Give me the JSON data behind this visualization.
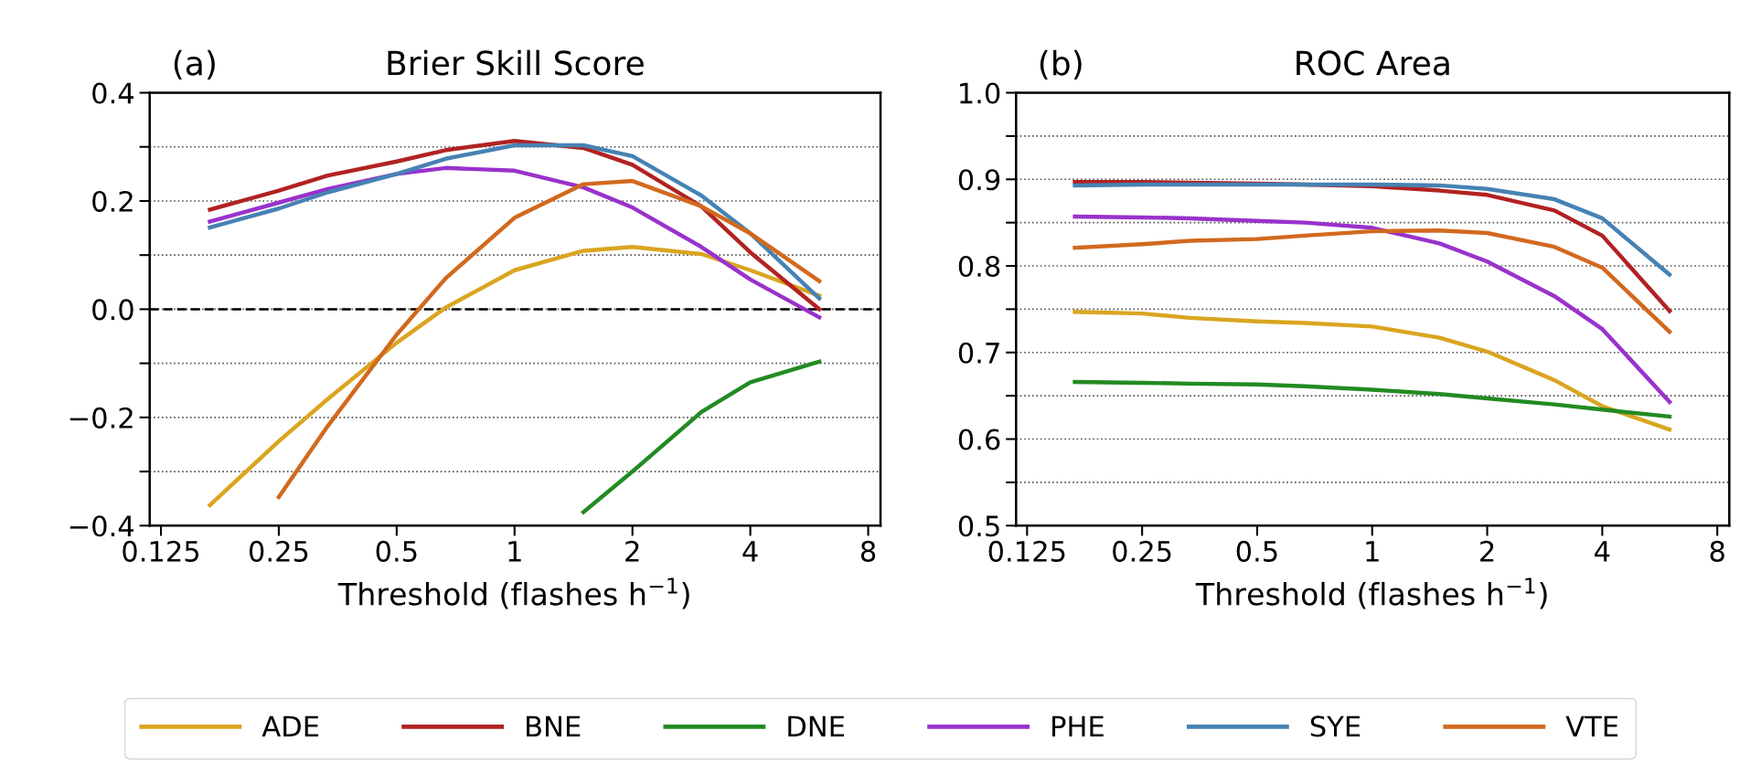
{
  "chart_data": [
    {
      "type": "line",
      "title": "Brier Skill Score",
      "annotations": [
        "(a)"
      ],
      "xlabel": "Threshold (flashes h$^{−1}$)",
      "log": "x",
      "x": [
        0.1667,
        0.25,
        0.3333,
        0.5,
        0.6667,
        1,
        1.5,
        2,
        3,
        4,
        6
      ],
      "xlim": [
        0.117,
        8.6
      ],
      "xticks": [
        0.125,
        0.25,
        0.5,
        1,
        2,
        4,
        8
      ],
      "ylim": [
        -0.4,
        0.4
      ],
      "yticks": [
        {
          "value": -0.4,
          "label": "−0.4"
        },
        {
          "value": -0.3,
          "label": null
        },
        {
          "value": -0.2,
          "label": "−0.2"
        },
        {
          "value": -0.1,
          "label": null
        },
        {
          "value": 0,
          "label": "0.0"
        },
        {
          "value": 0.1,
          "label": null
        },
        {
          "value": 0.2,
          "label": "0.2"
        },
        {
          "value": 0.3,
          "label": null
        },
        {
          "value": 0.4,
          "label": "0.4"
        }
      ],
      "grid": "y",
      "legend": "bottom",
      "line_style": "solid",
      "marker": "none",
      "ref_lines": [
        {
          "axis": "y",
          "value": 0,
          "color": "#000000",
          "line_style": "dashed"
        }
      ],
      "series": [
        {
          "name": "ADE",
          "color": "#daa520",
          "values": [
            -0.362,
            -0.244,
            -0.166,
            -0.062,
            0.003,
            0.072,
            0.108,
            0.115,
            0.102,
            0.072,
            0.025
          ]
        },
        {
          "name": "BNE",
          "color": "#b22222",
          "values": [
            0.184,
            0.219,
            0.247,
            0.273,
            0.294,
            0.311,
            0.298,
            0.267,
            0.19,
            0.105,
            0.0
          ]
        },
        {
          "name": "DNE",
          "color": "#228b22",
          "values": [
            null,
            null,
            null,
            null,
            null,
            null,
            -0.375,
            -0.3,
            -0.19,
            -0.135,
            -0.097
          ]
        },
        {
          "name": "PHE",
          "color": "#9932cc",
          "values": [
            0.162,
            0.197,
            0.222,
            0.25,
            0.261,
            0.256,
            0.225,
            0.188,
            0.115,
            0.055,
            -0.015
          ]
        },
        {
          "name": "SYE",
          "color": "#4682b4",
          "values": [
            0.151,
            0.186,
            0.216,
            0.25,
            0.278,
            0.303,
            0.303,
            0.283,
            0.21,
            0.14,
            0.02
          ]
        },
        {
          "name": "VTE",
          "color": "#d2691e",
          "values": [
            null,
            -0.347,
            -0.216,
            -0.047,
            0.057,
            0.169,
            0.231,
            0.237,
            0.19,
            0.14,
            0.052
          ]
        }
      ]
    },
    {
      "type": "line",
      "title": "ROC Area",
      "annotations": [
        "(b)"
      ],
      "xlabel": "Threshold (flashes h$^{−1}$)",
      "log": "x",
      "x": [
        0.1667,
        0.25,
        0.3333,
        0.5,
        0.6667,
        1,
        1.5,
        2,
        3,
        4,
        6
      ],
      "xlim": [
        0.117,
        8.6
      ],
      "xticks": [
        0.125,
        0.25,
        0.5,
        1,
        2,
        4,
        8
      ],
      "ylim": [
        0.5,
        1.0
      ],
      "yticks": [
        0.5,
        {
          "value": 0.55,
          "label": null
        },
        0.6,
        {
          "value": 0.65,
          "label": null
        },
        0.7,
        {
          "value": 0.75,
          "label": null
        },
        0.8,
        {
          "value": 0.85,
          "label": null
        },
        0.9,
        {
          "value": 0.95,
          "label": null
        },
        {
          "value": 1.0,
          "label": "1.0"
        }
      ],
      "grid": "y",
      "line_style": "solid",
      "marker": "none",
      "series": [
        {
          "color": "#daa520",
          "values": [
            0.747,
            0.745,
            0.74,
            0.736,
            0.734,
            0.73,
            0.717,
            0.701,
            0.668,
            0.638,
            0.611
          ]
        },
        {
          "color": "#b22222",
          "values": [
            0.897,
            0.897,
            0.896,
            0.895,
            0.894,
            0.892,
            0.887,
            0.882,
            0.864,
            0.835,
            0.748
          ]
        },
        {
          "color": "#228b22",
          "values": [
            0.666,
            0.665,
            0.664,
            0.663,
            0.661,
            0.657,
            0.652,
            0.647,
            0.64,
            0.634,
            0.626
          ]
        },
        {
          "color": "#9932cc",
          "values": [
            0.857,
            0.856,
            0.855,
            0.852,
            0.85,
            0.844,
            0.826,
            0.805,
            0.765,
            0.727,
            0.643
          ]
        },
        {
          "color": "#4682b4",
          "values": [
            0.893,
            0.894,
            0.894,
            0.894,
            0.894,
            0.894,
            0.893,
            0.889,
            0.877,
            0.855,
            0.79
          ]
        },
        {
          "color": "#d2691e",
          "values": [
            0.821,
            0.825,
            0.829,
            0.831,
            0.835,
            0.84,
            0.841,
            0.838,
            0.822,
            0.798,
            0.724
          ]
        }
      ]
    }
  ]
}
